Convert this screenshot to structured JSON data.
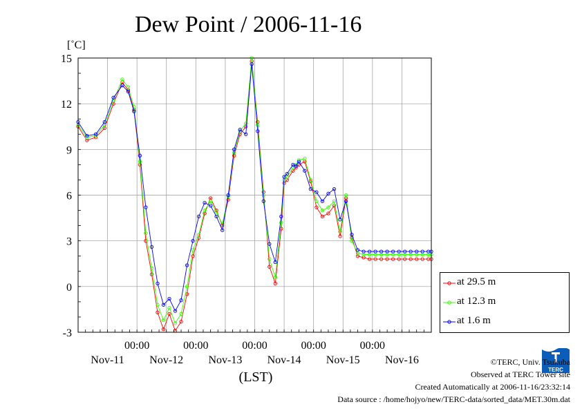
{
  "chart_data": {
    "type": "line",
    "title": "Dew Point / 2006-11-16",
    "ylabel": "[˚C]",
    "xlabel": "(LST)",
    "ylim": [
      -3,
      15
    ],
    "yticks": [
      -3,
      0,
      3,
      6,
      9,
      12,
      15
    ],
    "xlim": [
      0,
      6
    ],
    "xticks_top": [
      "00:00",
      "00:00",
      "00:00",
      "00:00",
      "00:00"
    ],
    "xticks_days": [
      "Nov-11",
      "Nov-12",
      "Nov-13",
      "Nov-14",
      "Nov-15",
      "Nov-16"
    ],
    "grid": true,
    "legend_position": "right",
    "x": [
      0.0,
      0.15,
      0.3,
      0.45,
      0.6,
      0.75,
      0.85,
      0.95,
      1.05,
      1.15,
      1.25,
      1.35,
      1.45,
      1.55,
      1.65,
      1.75,
      1.85,
      1.95,
      2.05,
      2.15,
      2.25,
      2.35,
      2.45,
      2.55,
      2.65,
      2.75,
      2.85,
      2.95,
      3.05,
      3.15,
      3.25,
      3.35,
      3.45,
      3.5,
      3.55,
      3.65,
      3.7,
      3.75,
      3.85,
      3.95,
      4.05,
      4.15,
      4.25,
      4.35,
      4.45,
      4.55,
      4.65,
      4.75,
      4.85,
      4.95,
      5.05,
      5.15,
      5.25,
      5.35,
      5.45,
      5.55,
      5.65,
      5.75,
      5.85,
      5.95,
      6.0
    ],
    "series": [
      {
        "name": "at 29.5 m",
        "color": "#ff0000",
        "values": [
          10.5,
          9.6,
          9.8,
          10.4,
          12.0,
          13.4,
          12.9,
          11.6,
          8.0,
          3.0,
          0.8,
          -1.7,
          -2.8,
          -1.8,
          -2.9,
          -2.3,
          -0.5,
          2.0,
          3.2,
          4.8,
          5.8,
          5.0,
          4.0,
          5.7,
          8.6,
          10.0,
          10.5,
          14.8,
          10.8,
          6.2,
          1.3,
          0.2,
          3.8,
          6.8,
          7.0,
          7.6,
          7.8,
          8.0,
          8.2,
          6.9,
          5.2,
          4.6,
          4.8,
          5.3,
          3.3,
          5.8,
          3.2,
          2.0,
          1.9,
          1.8,
          1.8,
          1.8,
          1.8,
          1.8,
          1.8,
          1.8,
          1.8,
          1.8,
          1.8,
          1.8,
          1.8
        ]
      },
      {
        "name": "at 12.3 m",
        "color": "#33ff00",
        "values": [
          10.6,
          9.8,
          9.9,
          10.6,
          12.2,
          13.6,
          13.1,
          11.8,
          8.2,
          3.5,
          1.2,
          -1.2,
          -2.2,
          -1.4,
          -2.4,
          -1.8,
          0.0,
          2.4,
          3.4,
          5.0,
          5.6,
          4.9,
          4.1,
          5.9,
          8.8,
          10.2,
          10.7,
          15.0,
          10.6,
          6.0,
          1.8,
          0.6,
          4.2,
          7.0,
          7.2,
          7.8,
          8.0,
          8.3,
          8.4,
          7.0,
          5.6,
          5.0,
          5.2,
          5.6,
          3.6,
          6.0,
          3.0,
          2.2,
          2.1,
          2.1,
          2.1,
          2.1,
          2.1,
          2.1,
          2.1,
          2.1,
          2.1,
          2.1,
          2.1,
          2.1,
          2.1
        ]
      },
      {
        "name": "at 1.6 m",
        "color": "#0000ff",
        "values": [
          10.8,
          9.9,
          10.0,
          10.8,
          12.4,
          13.2,
          12.8,
          11.5,
          8.6,
          5.2,
          2.6,
          0.2,
          -1.2,
          -0.8,
          -1.6,
          -0.9,
          1.4,
          3.0,
          4.6,
          5.5,
          5.3,
          4.6,
          3.7,
          6.0,
          9.0,
          10.3,
          10.0,
          14.6,
          10.2,
          5.6,
          2.8,
          1.6,
          4.6,
          7.2,
          7.4,
          8.0,
          7.9,
          8.2,
          7.6,
          6.4,
          6.2,
          5.6,
          6.1,
          6.4,
          4.4,
          5.6,
          3.4,
          2.4,
          2.3,
          2.3,
          2.3,
          2.3,
          2.3,
          2.3,
          2.3,
          2.3,
          2.3,
          2.3,
          2.3,
          2.3,
          2.3
        ]
      }
    ]
  },
  "footer": {
    "copyright": "©TERC, Univ. Tsukuba",
    "observed": "Observed at TERC Tower site",
    "created": "Created Automatically at 2006-11-16/23:32:14",
    "source": "Data source : /home/hojyo/new/TERC-data/sorted_data/MET.30m.dat"
  },
  "logo_text": "TERC"
}
